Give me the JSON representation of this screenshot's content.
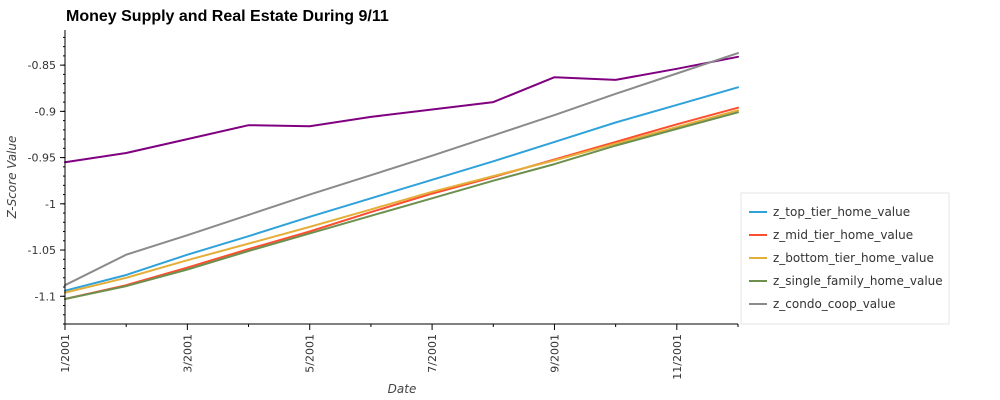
{
  "chart_data": {
    "type": "line",
    "title": "Money Supply and Real Estate During 9/11",
    "xlabel": "Date",
    "ylabel": "Z-Score Value",
    "x": [
      "2001-01",
      "2001-02",
      "2001-03",
      "2001-04",
      "2001-05",
      "2001-06",
      "2001-07",
      "2001-08",
      "2001-09",
      "2001-10",
      "2001-11",
      "2001-12"
    ],
    "x_tick_labels": [
      "1/2001",
      "3/2001",
      "5/2001",
      "7/2001",
      "9/2001",
      "11/2001"
    ],
    "y_ticks": [
      -1.1,
      -1.05,
      -1,
      -0.95,
      -0.9,
      -0.85
    ],
    "y_tick_labels": [
      "-1.1",
      "-1.05",
      "-1",
      "-0.95",
      "-0.9",
      "-0.85"
    ],
    "ylim": [
      -1.13,
      -0.812
    ],
    "legend_position": "right",
    "series": [
      {
        "color": "#800080",
        "values": [
          -0.955,
          -0.945,
          -0.93,
          -0.915,
          -0.916,
          -0.906,
          -0.898,
          -0.89,
          -0.863,
          -0.866,
          -0.854,
          -0.841
        ]
      },
      {
        "name": "z_top_tier_home_value",
        "color": "#30a2da",
        "values": [
          -1.094,
          -1.077,
          -1.055,
          -1.035,
          -1.014,
          -0.994,
          -0.974,
          -0.954,
          -0.933,
          -0.912,
          -0.893,
          -0.874
        ]
      },
      {
        "name": "z_mid_tier_home_value",
        "color": "#fc4f30",
        "values": [
          -1.103,
          -1.088,
          -1.069,
          -1.049,
          -1.03,
          -1.009,
          -0.989,
          -0.971,
          -0.952,
          -0.933,
          -0.914,
          -0.896
        ]
      },
      {
        "name": "z_bottom_tier_home_value",
        "color": "#e5ae38",
        "values": [
          -1.096,
          -1.08,
          -1.061,
          -1.043,
          -1.025,
          -1.006,
          -0.987,
          -0.97,
          -0.953,
          -0.935,
          -0.917,
          -0.899
        ]
      },
      {
        "name": "z_single_family_home_value",
        "color": "#6d904f",
        "values": [
          -1.103,
          -1.089,
          -1.071,
          -1.051,
          -1.032,
          -1.013,
          -0.994,
          -0.975,
          -0.957,
          -0.937,
          -0.919,
          -0.901
        ]
      },
      {
        "name": "z_condo_coop_value",
        "color": "#8b8b8b",
        "values": [
          -1.088,
          -1.055,
          -1.034,
          -1.012,
          -0.99,
          -0.969,
          -0.948,
          -0.926,
          -0.904,
          -0.881,
          -0.859,
          -0.837
        ]
      }
    ]
  }
}
